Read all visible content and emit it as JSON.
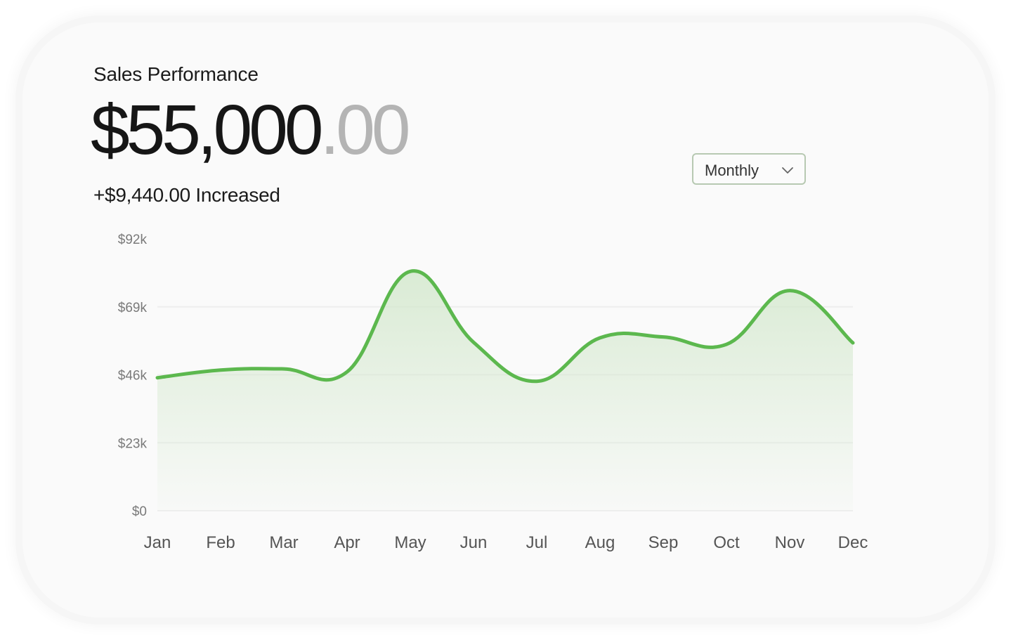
{
  "card": {
    "title": "Sales Performance",
    "amount_main": "$55,000",
    "amount_cents": ".00",
    "delta": "+$9,440.00 Increased"
  },
  "period_select": {
    "selected": "Monthly",
    "icon": "chevron-down-icon"
  },
  "colors": {
    "line": "#5cb84e",
    "area_top": "#cfe6c8",
    "grid": "#eeeeee"
  },
  "chart_data": {
    "type": "area",
    "title": "",
    "xlabel": "",
    "ylabel": "",
    "categories": [
      "Jan",
      "Feb",
      "Mar",
      "Apr",
      "May",
      "Jun",
      "Jul",
      "Aug",
      "Sep",
      "Oct",
      "Nov",
      "Dec"
    ],
    "values": [
      45000,
      47600,
      48000,
      47000,
      81000,
      57000,
      43800,
      58500,
      58800,
      56300,
      74500,
      56800
    ],
    "ylim": [
      0,
      92000
    ],
    "yticks": [
      {
        "label": "$0",
        "value": 0
      },
      {
        "label": "$23k",
        "value": 23000
      },
      {
        "label": "$46k",
        "value": 46000
      },
      {
        "label": "$69k",
        "value": 69000
      },
      {
        "label": "$92k",
        "value": 92000
      }
    ],
    "grid": true,
    "smooth": true
  }
}
